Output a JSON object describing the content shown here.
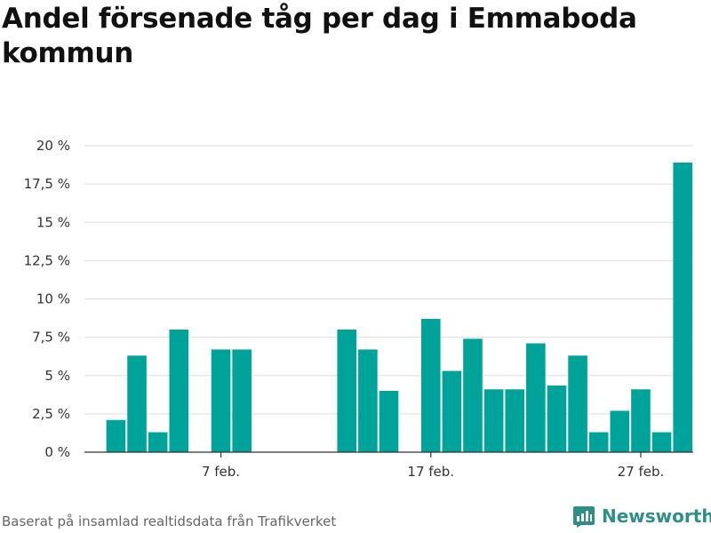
{
  "title": "Andel försenade tåg per dag i Emmaboda kommun",
  "source": "Baserat på insamlad realtidsdata från Trafikverket",
  "brand": {
    "name": "Newsworthy",
    "icon": "newsworthy-logo-icon",
    "color": "#2d8f85"
  },
  "colors": {
    "bar": "#00a39a",
    "grid": "#dddddd",
    "axis": "#333333",
    "text": "#333333"
  },
  "chart_data": {
    "type": "bar",
    "title": "Andel försenade tåg per dag i Emmaboda kommun",
    "xlabel": "",
    "ylabel": "",
    "ylim": [
      0,
      20
    ],
    "yticks": [
      0,
      2.5,
      5,
      7.5,
      10,
      12.5,
      15,
      17.5,
      20
    ],
    "ytick_labels": [
      "0 %",
      "2,5 %",
      "5 %",
      "7,5 %",
      "10 %",
      "12,5 %",
      "15 %",
      "17,5 %",
      "20 %"
    ],
    "x_range": [
      0.5,
      29.5
    ],
    "xtick_positions": [
      7,
      17,
      27
    ],
    "xtick_labels": [
      "7 feb.",
      "17 feb.",
      "27 feb."
    ],
    "grid": true,
    "legend": "none",
    "bars": [
      {
        "day": 2,
        "value": 2.1
      },
      {
        "day": 3,
        "value": 6.3
      },
      {
        "day": 4,
        "value": 1.3
      },
      {
        "day": 5,
        "value": 8.0
      },
      {
        "day": 7,
        "value": 6.7
      },
      {
        "day": 8,
        "value": 6.7
      },
      {
        "day": 13,
        "value": 8.0
      },
      {
        "day": 14,
        "value": 6.7
      },
      {
        "day": 15,
        "value": 4.0
      },
      {
        "day": 17,
        "value": 8.7
      },
      {
        "day": 18,
        "value": 5.3
      },
      {
        "day": 19,
        "value": 7.4
      },
      {
        "day": 20,
        "value": 4.1
      },
      {
        "day": 21,
        "value": 4.1
      },
      {
        "day": 22,
        "value": 7.1
      },
      {
        "day": 23,
        "value": 4.35
      },
      {
        "day": 24,
        "value": 6.3
      },
      {
        "day": 25,
        "value": 1.3
      },
      {
        "day": 26,
        "value": 2.7
      },
      {
        "day": 27,
        "value": 4.1
      },
      {
        "day": 28,
        "value": 1.3
      },
      {
        "day": 29,
        "value": 18.9
      }
    ]
  }
}
